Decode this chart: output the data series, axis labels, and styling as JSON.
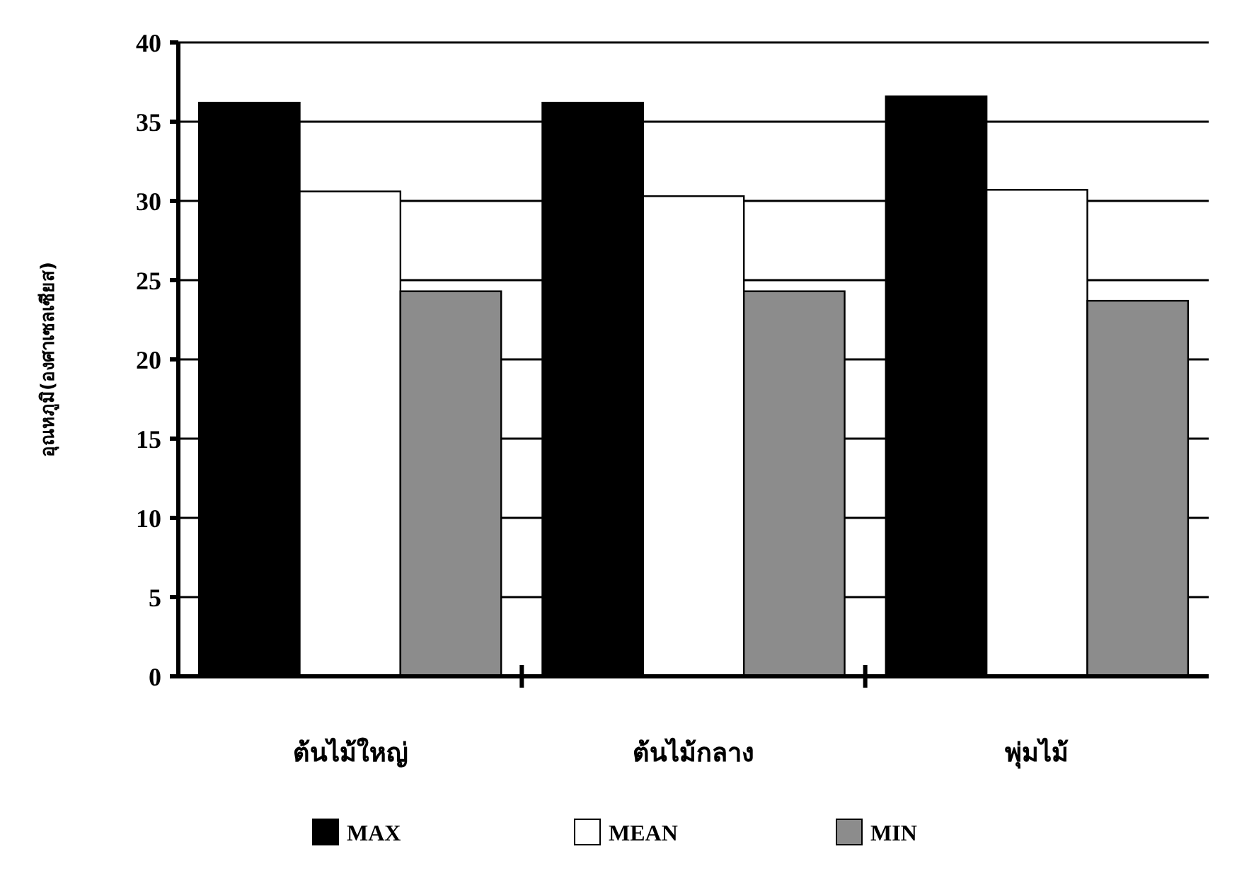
{
  "chart_data": {
    "type": "bar",
    "ylabel": "อุณหภูมิ(องศาเซลเซียส)",
    "categories": [
      "ต้นไม้ใหญ่",
      "ต้นไม้กลาง",
      "พุ่มไม้"
    ],
    "series": [
      {
        "name": "MAX",
        "color": "#000000",
        "values": [
          36.2,
          36.2,
          36.6
        ]
      },
      {
        "name": "MEAN",
        "color": "#ffffff",
        "values": [
          30.6,
          30.3,
          30.7
        ]
      },
      {
        "name": "MIN",
        "color": "#8c8c8c",
        "values": [
          24.3,
          24.3,
          23.7
        ]
      }
    ],
    "ylim": [
      0,
      40
    ],
    "yticks": [
      0,
      5,
      10,
      15,
      20,
      25,
      30,
      35,
      40
    ],
    "grid": "y",
    "legend": "bottom"
  }
}
